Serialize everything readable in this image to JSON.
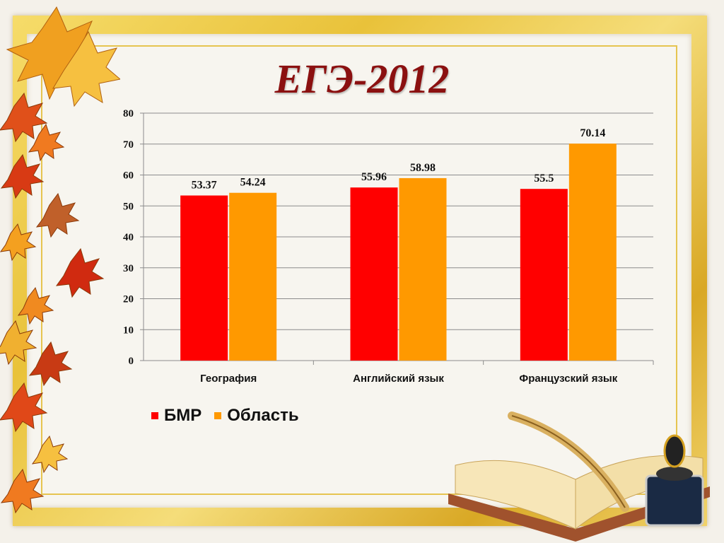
{
  "title": "ЕГЭ-2012",
  "colors": {
    "bmr": "#ff0000",
    "oblast": "#ff9900",
    "title": "#8b1010"
  },
  "chart_data": {
    "type": "bar",
    "categories": [
      "География",
      "Английский язык",
      "Французский язык"
    ],
    "series": [
      {
        "name": "БМР",
        "values": [
          53.37,
          55.96,
          55.5
        ]
      },
      {
        "name": "Область",
        "values": [
          54.24,
          58.98,
          70.14
        ]
      }
    ],
    "ylim": [
      0,
      80
    ],
    "yticks": [
      0,
      10,
      20,
      30,
      40,
      50,
      60,
      70,
      80
    ],
    "grid": true,
    "legend": "bottom-left"
  }
}
